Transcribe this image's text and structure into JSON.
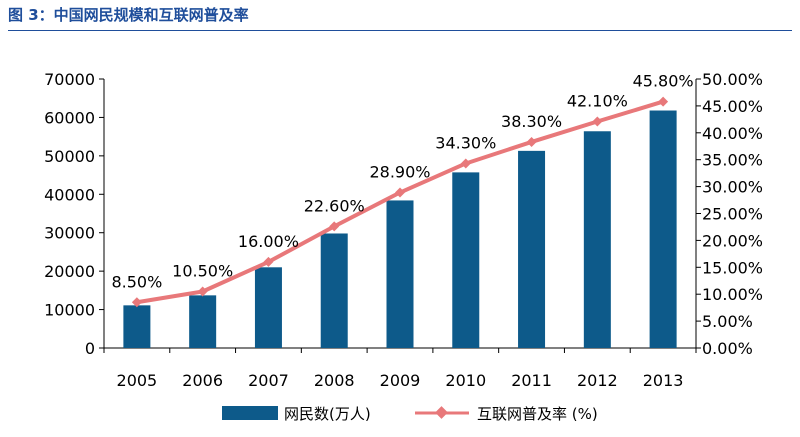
{
  "title": "图 3：中国网民规模和互联网普及率",
  "legend": {
    "bar_label": "网民数(万人)",
    "line_label": "互联网普及率 (%)"
  },
  "colors": {
    "bar": "#0d5a8a",
    "line": "#e8787a",
    "title": "#1f4e9b"
  },
  "chart_data": {
    "type": "bar",
    "categories": [
      "2005",
      "2006",
      "2007",
      "2008",
      "2009",
      "2010",
      "2011",
      "2012",
      "2013"
    ],
    "series": [
      {
        "name": "网民数(万人)",
        "type": "bar",
        "axis": "left",
        "values": [
          11100,
          13700,
          21000,
          29800,
          38400,
          45700,
          51300,
          56400,
          61800
        ]
      },
      {
        "name": "互联网普及率 (%)",
        "type": "line",
        "axis": "right",
        "values": [
          8.5,
          10.5,
          16.0,
          22.6,
          28.9,
          34.3,
          38.3,
          42.1,
          45.8
        ],
        "labels": [
          "8.50%",
          "10.50%",
          "16.00%",
          "22.60%",
          "28.90%",
          "34.30%",
          "38.30%",
          "42.10%",
          "45.80%"
        ]
      }
    ],
    "y_left": {
      "min": 0,
      "max": 70000,
      "ticks": [
        "0",
        "10000",
        "20000",
        "30000",
        "40000",
        "50000",
        "60000",
        "70000"
      ]
    },
    "y_right": {
      "min": 0,
      "max": 50,
      "ticks": [
        "0.00%",
        "5.00%",
        "10.00%",
        "15.00%",
        "20.00%",
        "25.00%",
        "30.00%",
        "35.00%",
        "40.00%",
        "45.00%",
        "50.00%"
      ]
    },
    "grid": false,
    "legend_position": "bottom"
  }
}
